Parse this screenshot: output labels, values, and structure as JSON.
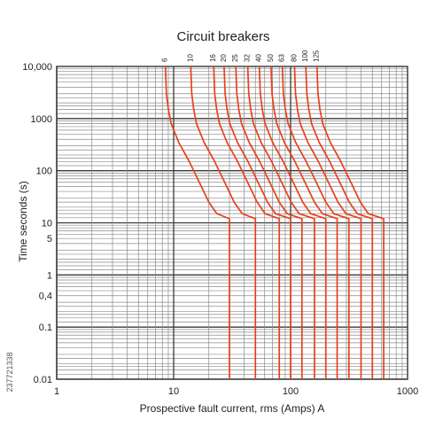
{
  "chart_data": {
    "type": "line",
    "title": "Circuit breakers",
    "xlabel": "Prospective fault current, rms (Amps) A",
    "ylabel": "Time  seconds  (s)",
    "xscale": "log",
    "yscale": "log",
    "xlim": [
      1,
      1000
    ],
    "ylim": [
      0.01,
      10000
    ],
    "x_tick_labels": [
      "1",
      "10",
      "100",
      "1000"
    ],
    "x_tick_values": [
      1,
      10,
      100,
      1000
    ],
    "y_tick_labels": [
      "10,000",
      "1000",
      "100",
      "10",
      "5",
      "1",
      "0,4",
      "0.1",
      "0.01"
    ],
    "y_tick_values": [
      10000,
      1000,
      100,
      10,
      5,
      1,
      0.4,
      0.1,
      0.01
    ],
    "grid": true,
    "line_color": "#e8401c",
    "grid_color": "#8a8a8a",
    "series": [
      {
        "name": "6",
        "top_current": 8.5,
        "instantaneous_current": 30
      },
      {
        "name": "10",
        "top_current": 14,
        "instantaneous_current": 50
      },
      {
        "name": "16",
        "top_current": 22,
        "instantaneous_current": 80
      },
      {
        "name": "20",
        "top_current": 27,
        "instantaneous_current": 100
      },
      {
        "name": "25",
        "top_current": 34,
        "instantaneous_current": 125
      },
      {
        "name": "32",
        "top_current": 43,
        "instantaneous_current": 160
      },
      {
        "name": "40",
        "top_current": 54,
        "instantaneous_current": 200
      },
      {
        "name": "50",
        "top_current": 68,
        "instantaneous_current": 250
      },
      {
        "name": "63",
        "top_current": 85,
        "instantaneous_current": 315
      },
      {
        "name": "80",
        "top_current": 108,
        "instantaneous_current": 400
      },
      {
        "name": "100",
        "top_current": 135,
        "instantaneous_current": 500
      },
      {
        "name": "125",
        "top_current": 168,
        "instantaneous_current": 625
      }
    ]
  },
  "watermark": "237721338"
}
